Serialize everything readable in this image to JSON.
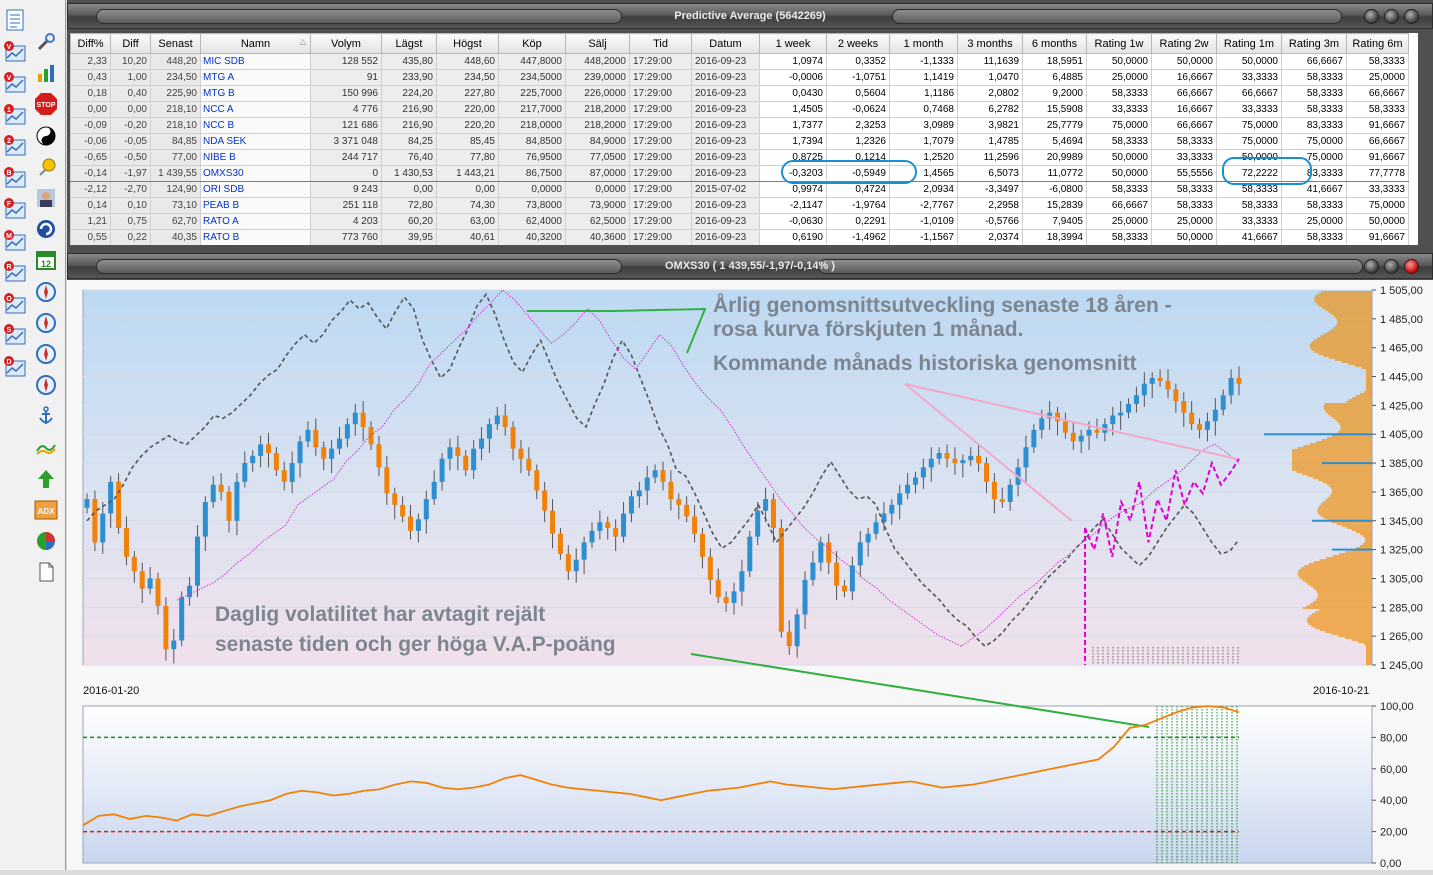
{
  "toolbar": {
    "icons": [
      "list-icon",
      "chart-v-icon",
      "chart-v2-icon",
      "chart-1-icon",
      "chart-2-icon",
      "chart-b-icon",
      "chart-f-icon",
      "chart-m-icon",
      "chart-r-icon",
      "chart-o-icon",
      "chart-s-icon",
      "chart-d-icon",
      "wrench-icon",
      "bar-chart-icon",
      "stop-icon",
      "yinyang-icon",
      "pin-icon",
      "portrait-icon",
      "swirl-icon",
      "calendar-icon",
      "compass-icon",
      "compass2-icon",
      "compass3-icon",
      "compass4-icon",
      "anchor-icon",
      "wave-icon",
      "green-arrow-icon",
      "adx-icon",
      "pie-icon",
      "document-icon"
    ],
    "calendar_day": "12",
    "adx_label": "ADX",
    "stop_label": "STOP"
  },
  "window1": {
    "title": "Predictive Average (5642269)"
  },
  "table": {
    "columns": [
      "Diff%",
      "Diff",
      "Senast",
      "Namn",
      "Volym",
      "Lägst",
      "Högst",
      "Köp",
      "Sälj",
      "Tid",
      "Datum",
      "1 week",
      "2 weeks",
      "1 month",
      "3 months",
      "6 months",
      "Rating 1w",
      "Rating 2w",
      "Rating 1m",
      "Rating 3m",
      "Rating 6m"
    ],
    "rows": [
      [
        "2,33",
        "10,20",
        "448,20",
        "MIC SDB",
        "128 552",
        "435,80",
        "448,60",
        "447,8000",
        "448,2000",
        "17:29:00",
        "2016-09-23",
        "1,0974",
        "0,3352",
        "-1,1333",
        "11,1639",
        "18,5951",
        "50,0000",
        "50,0000",
        "50,0000",
        "66,6667",
        "58,3333"
      ],
      [
        "0,43",
        "1,00",
        "234,50",
        "MTG A",
        "91",
        "233,90",
        "234,50",
        "234,5000",
        "239,0000",
        "17:29:00",
        "2016-09-23",
        "-0,0006",
        "-1,0751",
        "1,1419",
        "1,0470",
        "6,4885",
        "25,0000",
        "16,6667",
        "33,3333",
        "58,3333",
        "25,0000"
      ],
      [
        "0,18",
        "0,40",
        "225,90",
        "MTG B",
        "150 996",
        "224,20",
        "227,80",
        "225,7000",
        "226,0000",
        "17:29:00",
        "2016-09-23",
        "0,0430",
        "0,5604",
        "1,1186",
        "2,0802",
        "9,2000",
        "58,3333",
        "66,6667",
        "66,6667",
        "58,3333",
        "66,6667"
      ],
      [
        "0,00",
        "0,00",
        "218,10",
        "NCC A",
        "4 776",
        "216,90",
        "220,00",
        "217,7000",
        "218,2000",
        "17:29:00",
        "2016-09-23",
        "1,4505",
        "-0,0624",
        "0,7468",
        "6,2782",
        "15,5908",
        "33,3333",
        "16,6667",
        "33,3333",
        "58,3333",
        "58,3333"
      ],
      [
        "-0,09",
        "-0,20",
        "218,10",
        "NCC B",
        "121 686",
        "216,90",
        "220,20",
        "218,0000",
        "218,2000",
        "17:29:00",
        "2016-09-23",
        "1,7377",
        "2,3253",
        "3,0989",
        "3,9821",
        "25,7779",
        "75,0000",
        "66,6667",
        "75,0000",
        "83,3333",
        "91,6667"
      ],
      [
        "-0,06",
        "-0,05",
        "84,85",
        "NDA SEK",
        "3 371 048",
        "84,25",
        "85,45",
        "84,8500",
        "84,9000",
        "17:29:00",
        "2016-09-23",
        "1,7394",
        "1,2326",
        "1,7079",
        "1,4785",
        "5,4694",
        "58,3333",
        "58,3333",
        "75,0000",
        "75,0000",
        "66,6667"
      ],
      [
        "-0,65",
        "-0,50",
        "77,00",
        "NIBE B",
        "244 717",
        "76,40",
        "77,80",
        "76,9500",
        "77,0500",
        "17:29:00",
        "2016-09-23",
        "0,8725",
        "0,1214",
        "1,2520",
        "11,2596",
        "20,9989",
        "50,0000",
        "33,3333",
        "50,0000",
        "75,0000",
        "91,6667"
      ],
      [
        "-0,14",
        "-1,97",
        "1 439,55",
        "OMXS30",
        "0",
        "1 430,53",
        "1 443,21",
        "86,7500",
        "87,0000",
        "17:29:00",
        "2016-09-23",
        "-0,3203",
        "-0,5949",
        "1,4565",
        "6,5073",
        "11,0772",
        "50,0000",
        "55,5556",
        "72,2222",
        "83,3333",
        "77,7778"
      ],
      [
        "-2,12",
        "-2,70",
        "124,90",
        "ORI SDB",
        "9 243",
        "0,00",
        "0,00",
        "0,0000",
        "0,0000",
        "17:29:00",
        "2015-07-02",
        "0,9974",
        "0,4724",
        "2,0934",
        "-3,3497",
        "-6,0800",
        "58,3333",
        "58,3333",
        "58,3333",
        "41,6667",
        "33,3333"
      ],
      [
        "0,14",
        "0,10",
        "73,10",
        "PEAB B",
        "251 118",
        "72,80",
        "74,30",
        "73,8000",
        "73,9000",
        "17:29:00",
        "2016-09-23",
        "-2,1147",
        "-1,9764",
        "-2,7767",
        "2,2958",
        "15,2839",
        "66,6667",
        "58,3333",
        "58,3333",
        "58,3333",
        "75,0000"
      ],
      [
        "1,21",
        "0,75",
        "62,70",
        "RATO A",
        "4 203",
        "60,20",
        "63,00",
        "62,4000",
        "62,5000",
        "17:29:00",
        "2016-09-23",
        "-0,0630",
        "0,2291",
        "-1,0109",
        "-0,5766",
        "7,9405",
        "25,0000",
        "25,0000",
        "33,3333",
        "25,0000",
        "50,0000"
      ],
      [
        "0,55",
        "0,22",
        "40,35",
        "RATO B",
        "773 760",
        "39,95",
        "40,61",
        "40,3200",
        "40,3600",
        "17:29:00",
        "2016-09-23",
        "0,6190",
        "-1,4962",
        "-1,1567",
        "2,0374",
        "18,3994",
        "58,3333",
        "50,0000",
        "41,6667",
        "58,3333",
        "91,6667"
      ]
    ]
  },
  "window2": {
    "title": "OMXS30 ( 1 439,55/-1,97/-0,14% )"
  },
  "chart_data": {
    "type": "line",
    "title": "OMXS30 ( 1 439,55/-1,97/-0,14% )",
    "x_start_label": "2016-01-20",
    "x_end_label": "2016-10-21",
    "price_axis": {
      "ticks": [
        "1 505,00",
        "1 485,00",
        "1 465,00",
        "1 445,00",
        "1 425,00",
        "1 405,00",
        "1 385,00",
        "1 365,00",
        "1 345,00",
        "1 325,00",
        "1 305,00",
        "1 285,00",
        "1 265,00",
        "1 245,00"
      ],
      "ylim": [
        1245,
        1505
      ]
    },
    "series": [
      {
        "kind": "candlestick",
        "values": [
          1360,
          1330,
          1350,
          1372,
          1340,
          1320,
          1310,
          1298,
          1305,
          1286,
          1256,
          1262,
          1292,
          1300,
          1334,
          1358,
          1370,
          1365,
          1345,
          1372,
          1385,
          1390,
          1398,
          1392,
          1380,
          1372,
          1385,
          1400,
          1408,
          1396,
          1388,
          1395,
          1402,
          1412,
          1420,
          1410,
          1398,
          1382,
          1364,
          1356,
          1348,
          1338,
          1346,
          1360,
          1372,
          1388,
          1396,
          1390,
          1380,
          1395,
          1402,
          1412,
          1418,
          1410,
          1395,
          1388,
          1380,
          1366,
          1352,
          1336,
          1322,
          1310,
          1318,
          1330,
          1338,
          1344,
          1340,
          1334,
          1350,
          1362,
          1366,
          1375,
          1380,
          1372,
          1360,
          1356,
          1348,
          1336,
          1320,
          1304,
          1292,
          1288,
          1296,
          1310,
          1334,
          1352,
          1360,
          1340,
          1268,
          1258,
          1280,
          1304,
          1316,
          1330,
          1316,
          1300,
          1296,
          1314,
          1330,
          1336,
          1344,
          1350,
          1356,
          1364,
          1370,
          1375,
          1382,
          1388,
          1392,
          1388,
          1385,
          1387,
          1390,
          1385,
          1372,
          1360,
          1358,
          1370,
          1382,
          1396,
          1408,
          1416,
          1420,
          1414,
          1406,
          1400,
          1404,
          1408,
          1406,
          1412,
          1418,
          1420,
          1426,
          1432,
          1440,
          1444,
          1442,
          1436,
          1428,
          1420,
          1412,
          1408,
          1414,
          1422,
          1432,
          1444,
          1440
        ]
      },
      {
        "name": "Årlig genomsnittsutveckling (grå)",
        "kind": "dashed-grey",
        "values": [
          1345,
          1352,
          1356,
          1360,
          1370,
          1382,
          1390,
          1396,
          1400,
          1404,
          1400,
          1398,
          1404,
          1410,
          1418,
          1416,
          1420,
          1426,
          1432,
          1440,
          1446,
          1450,
          1460,
          1468,
          1474,
          1468,
          1474,
          1484,
          1490,
          1498,
          1492,
          1496,
          1486,
          1478,
          1490,
          1500,
          1492,
          1470,
          1456,
          1444,
          1450,
          1465,
          1478,
          1494,
          1502,
          1488,
          1470,
          1455,
          1448,
          1460,
          1470,
          1455,
          1440,
          1428,
          1416,
          1410,
          1426,
          1440,
          1458,
          1470,
          1460,
          1444,
          1428,
          1410,
          1398,
          1380,
          1376,
          1364,
          1350,
          1336,
          1326,
          1330,
          1338,
          1346,
          1356,
          1344,
          1330,
          1338,
          1346,
          1354,
          1364,
          1376,
          1386,
          1376,
          1366,
          1360,
          1362,
          1356,
          1340,
          1326,
          1318,
          1310,
          1302,
          1296,
          1290,
          1282,
          1276,
          1272,
          1264,
          1258,
          1262,
          1268,
          1276,
          1282,
          1290,
          1298,
          1306,
          1312,
          1318,
          1326,
          1332,
          1340,
          1346,
          1336,
          1326,
          1320,
          1314,
          1320,
          1330,
          1340,
          1348,
          1356,
          1350,
          1340,
          1330,
          1322,
          1324,
          1332
        ]
      },
      {
        "name": "Rosa kurva förskjuten 1 månad",
        "kind": "dotted-magenta",
        "values": [
          1290,
          1294,
          1298,
          1302,
          1308,
          1316,
          1322,
          1330,
          1336,
          1342,
          1356,
          1362,
          1368,
          1374,
          1386,
          1394,
          1404,
          1410,
          1422,
          1430,
          1440,
          1454,
          1462,
          1470,
          1478,
          1488,
          1496,
          1505,
          1498,
          1488,
          1478,
          1468,
          1474,
          1482,
          1492,
          1484,
          1470,
          1458,
          1450,
          1462,
          1474,
          1466,
          1452,
          1440,
          1430,
          1422,
          1410,
          1396,
          1384,
          1372,
          1360,
          1350,
          1340,
          1332,
          1326,
          1318,
          1312,
          1304,
          1298,
          1290,
          1284,
          1278,
          1272,
          1266,
          1262,
          1258,
          1264,
          1270,
          1278,
          1286,
          1294,
          1300,
          1308,
          1316,
          1322,
          1330,
          1336,
          1344,
          1350,
          1354,
          1358,
          1366,
          1372,
          1378,
          1386,
          1394,
          1398,
          1392,
          1385
        ]
      },
      {
        "name": "Kommande månads historiska genomsnitt",
        "kind": "dashed-magenta",
        "values": [
          1340,
          1325,
          1350,
          1320,
          1358,
          1345,
          1372,
          1330,
          1360,
          1345,
          1380,
          1356,
          1372,
          1364,
          1385,
          1370,
          1378,
          1388
        ]
      }
    ],
    "annotations": [
      "Årlig genomsnittsutveckling senaste 18 åren -",
      "rosa kurva förskjuten 1 månad.",
      "Kommande månads historiska genomsnitt",
      "Daglig volatilitet har avtagit rejält",
      "senaste tiden och ger höga V.A.P-poäng"
    ],
    "volatility_panel": {
      "ticks": [
        "100,00",
        "80,00",
        "60,00",
        "40,00",
        "20,00",
        "0,00"
      ],
      "ylim": [
        0,
        100
      ],
      "upper_level": 80,
      "lower_level": 20,
      "values": [
        24,
        30,
        31,
        28,
        30,
        29,
        27,
        31,
        30,
        33,
        36,
        38,
        40,
        44,
        46,
        45,
        43,
        44,
        46,
        47,
        50,
        52,
        51,
        48,
        47,
        48,
        50,
        54,
        56,
        53,
        50,
        48,
        47,
        46,
        45,
        44,
        42,
        40,
        42,
        44,
        46,
        47,
        48,
        50,
        52,
        50,
        49,
        48,
        47,
        48,
        49,
        50,
        51,
        52,
        50,
        48,
        49,
        50,
        52,
        54,
        56,
        58,
        60,
        62,
        64,
        66,
        74,
        86,
        88,
        92,
        96,
        99,
        100,
        99,
        96
      ]
    }
  }
}
